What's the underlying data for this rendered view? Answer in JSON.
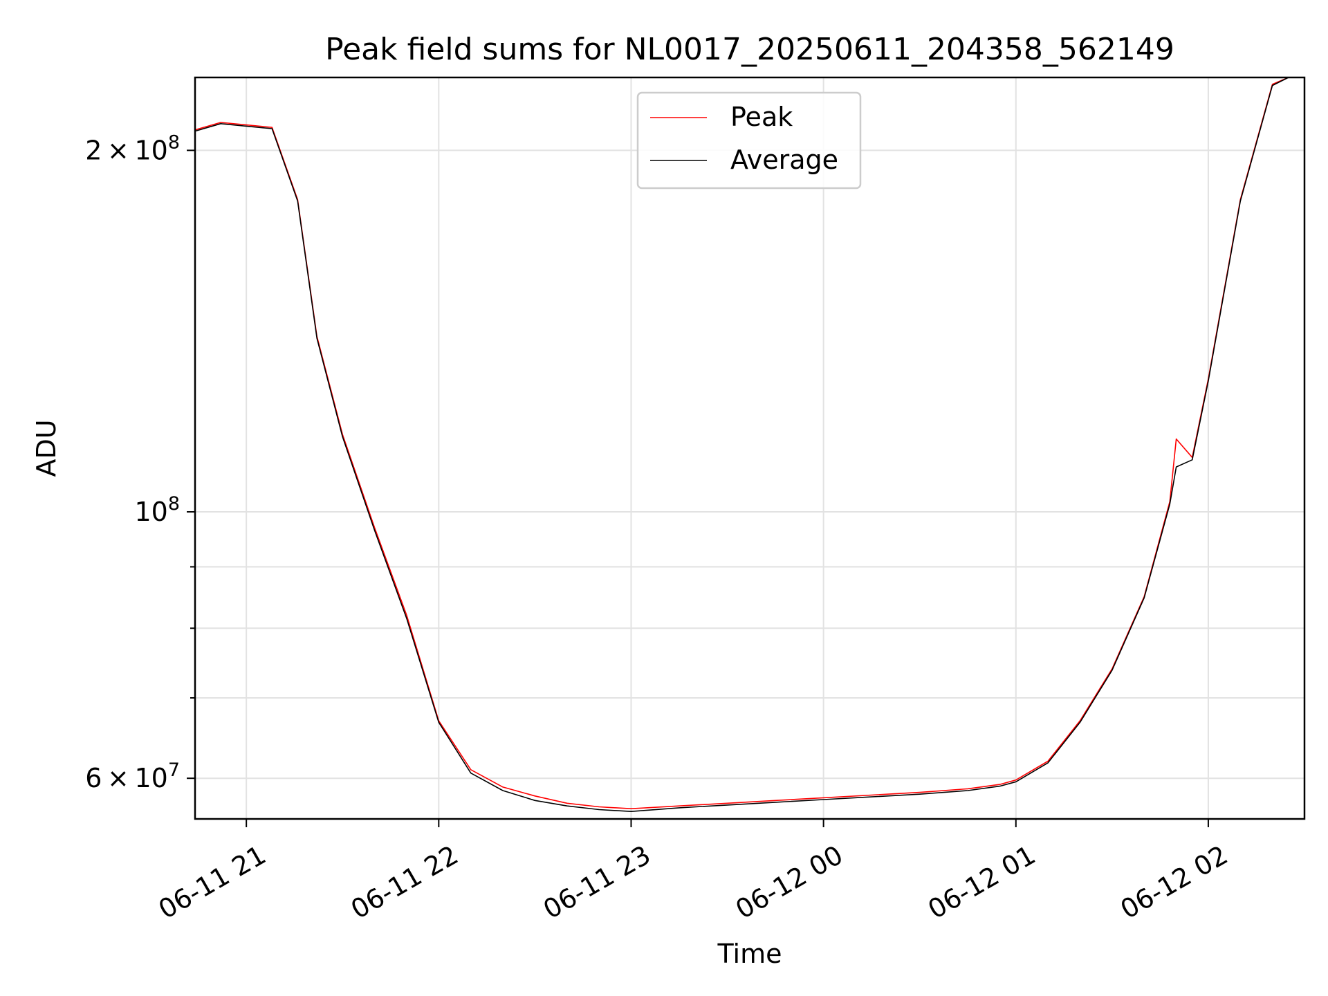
{
  "chart_data": {
    "type": "line",
    "title": "Peak field sums for NL0017_20250611_204358_562149",
    "xlabel": "Time",
    "ylabel": "ADU",
    "yscale": "log",
    "grid": true,
    "legend_position": "top-center",
    "xlim": [
      "06-11 20:44",
      "06-12 02:30"
    ],
    "ylim": [
      55500000,
      230000000
    ],
    "x_ticks": [
      "06-11 21",
      "06-11 22",
      "06-11 23",
      "06-12 00",
      "06-12 01",
      "06-12 02"
    ],
    "y_major_ticks": [
      {
        "value": 60000000,
        "mantissa": "6",
        "base": "10",
        "exp": "7"
      },
      {
        "value": 100000000,
        "mantissa": "",
        "base": "10",
        "exp": "8"
      },
      {
        "value": 200000000,
        "mantissa": "2",
        "base": "10",
        "exp": "8"
      }
    ],
    "y_minor_ticks": [
      70000000,
      80000000,
      90000000,
      300000000
    ],
    "series": [
      {
        "name": "Peak",
        "color": "#ff0000"
      },
      {
        "name": "Average",
        "color": "#000000"
      }
    ],
    "x": [
      "06-11 20:44",
      "06-11 20:52",
      "06-11 21:00",
      "06-11 21:08",
      "06-11 21:16",
      "06-11 21:22",
      "06-11 21:30",
      "06-11 21:40",
      "06-11 21:50",
      "06-11 22:00",
      "06-11 22:10",
      "06-11 22:20",
      "06-11 22:30",
      "06-11 22:40",
      "06-11 22:50",
      "06-11 23:00",
      "06-11 23:15",
      "06-11 23:30",
      "06-11 23:45",
      "06-12 00:00",
      "06-12 00:15",
      "06-12 00:30",
      "06-12 00:45",
      "06-12 00:55",
      "06-12 01:00",
      "06-12 01:10",
      "06-12 01:20",
      "06-12 01:30",
      "06-12 01:40",
      "06-12 01:48",
      "06-12 01:50",
      "06-12 01:55",
      "06-12 02:00",
      "06-12 02:10",
      "06-12 02:20",
      "06-12 02:25"
    ],
    "peak_values": [
      208000000,
      211000000,
      210000000,
      209000000,
      182000000,
      140000000,
      116000000,
      97000000,
      82000000,
      67000000,
      61000000,
      59000000,
      58000000,
      57200000,
      56800000,
      56600000,
      56900000,
      57200000,
      57500000,
      57800000,
      58100000,
      58400000,
      58800000,
      59300000,
      59800000,
      62000000,
      67000000,
      74000000,
      85000000,
      102000000,
      115000000,
      111000000,
      129000000,
      182000000,
      227000000,
      237000000
    ],
    "average_values": [
      207500000,
      210500000,
      209500000,
      208500000,
      181500000,
      139500000,
      115500000,
      96500000,
      81500000,
      66800000,
      60600000,
      58600000,
      57500000,
      56900000,
      56500000,
      56300000,
      56700000,
      57000000,
      57300000,
      57600000,
      57900000,
      58200000,
      58600000,
      59100000,
      59600000,
      61800000,
      66800000,
      73800000,
      84800000,
      101500000,
      109000000,
      110500000,
      128500000,
      181500000,
      226500000,
      236500000
    ]
  }
}
